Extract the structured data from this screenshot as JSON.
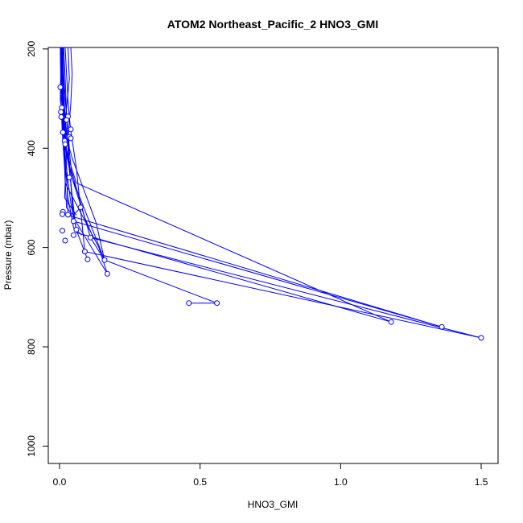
{
  "chart_data": {
    "type": "line",
    "title": "ATOM2 Northeast_Pacific_2 HNO3_GMI",
    "xlabel": "HNO3_GMI",
    "ylabel": "Pressure (mbar)",
    "xlim": [
      -0.04,
      1.56
    ],
    "ylim": [
      1035,
      197
    ],
    "y_reversed": true,
    "x_ticks": [
      0.0,
      0.5,
      1.0,
      1.5
    ],
    "x_tick_labels": [
      "0.0",
      "0.5",
      "1.0",
      "1.5"
    ],
    "y_ticks": [
      200,
      400,
      600,
      800,
      1000
    ],
    "y_tick_labels": [
      "200",
      "400",
      "600",
      "800",
      "1000"
    ],
    "grid": false,
    "legend": "none",
    "line_color": "#0000ff",
    "marker": "open-circle",
    "series": [
      {
        "x": [
          0.003,
          0.004,
          0.005,
          0.003,
          0.008,
          0.02,
          0.05,
          0.09,
          0.12
        ],
        "y": [
          197,
          230,
          265,
          300,
          335,
          400,
          470,
          540,
          580
        ]
      },
      {
        "x": [
          0.005,
          0.007,
          0.009,
          0.012,
          0.02,
          0.06,
          1.18
        ],
        "y": [
          197,
          240,
          290,
          320,
          400,
          470,
          750
        ]
      },
      {
        "x": [
          0.008,
          0.006,
          0.004,
          0.003,
          0.012,
          0.035,
          0.05,
          1.36
        ],
        "y": [
          197,
          230,
          260,
          280,
          370,
          430,
          547,
          760
        ]
      },
      {
        "x": [
          0.012,
          0.015,
          0.02,
          0.025,
          0.03,
          0.045,
          0.16,
          0.56,
          0.46
        ],
        "y": [
          197,
          250,
          300,
          335,
          380,
          460,
          625,
          712,
          712
        ]
      },
      {
        "x": [
          0.02,
          0.025,
          0.03,
          0.035,
          0.04,
          0.06,
          0.09,
          1.5
        ],
        "y": [
          197,
          250,
          300,
          338,
          365,
          440,
          608,
          782
        ]
      },
      {
        "x": [
          0.03,
          0.035,
          0.025,
          0.018,
          0.022,
          0.03,
          1.36
        ],
        "y": [
          197,
          260,
          320,
          345,
          385,
          535,
          760
        ]
      },
      {
        "x": [
          0.04,
          0.045,
          0.04,
          0.03,
          0.03,
          0.06,
          1.18
        ],
        "y": [
          197,
          250,
          310,
          380,
          420,
          570,
          750
        ]
      },
      {
        "x": [
          0.008,
          0.01,
          0.012,
          0.02,
          0.04,
          0.06,
          0.1
        ],
        "y": [
          197,
          260,
          320,
          420,
          510,
          565,
          624
        ]
      },
      {
        "x": [
          0.01,
          0.012,
          0.015,
          0.02,
          0.035,
          0.045,
          0.11,
          1.5
        ],
        "y": [
          197,
          260,
          320,
          400,
          440,
          450,
          580,
          782
        ]
      },
      {
        "x": [
          0.006,
          0.01,
          0.018,
          0.03,
          0.05,
          0.17
        ],
        "y": [
          197,
          260,
          330,
          392,
          540,
          653
        ]
      },
      {
        "x": [
          0.01,
          0.008,
          0.006,
          0.01,
          0.018,
          0.025,
          0.05,
          0.075
        ],
        "y": [
          197,
          260,
          320,
          370,
          440,
          520,
          535,
          519
        ]
      },
      {
        "x": [
          0.003,
          0.004,
          0.005,
          0.008,
          0.012,
          0.02,
          0.018,
          0.06
        ],
        "y": [
          197,
          250,
          290,
          300,
          320,
          470,
          500,
          535
        ]
      },
      {
        "x": [
          0.015,
          0.02,
          0.025,
          0.035,
          0.045,
          0.13,
          0.16,
          0.11
        ],
        "y": [
          197,
          260,
          330,
          400,
          420,
          550,
          625,
          580
        ]
      },
      {
        "x": [
          0.012,
          0.014,
          0.018,
          0.025,
          0.02,
          0.14,
          0.17
        ],
        "y": [
          197,
          260,
          320,
          390,
          470,
          600,
          653
        ]
      },
      {
        "x": [
          0.005,
          0.006,
          0.008,
          0.01,
          0.015,
          0.03,
          0.05,
          0.08
        ],
        "y": [
          197,
          240,
          280,
          300,
          400,
          500,
          560,
          575
        ]
      }
    ],
    "markers": [
      {
        "x": 0.003,
        "y": 277
      },
      {
        "x": 0.008,
        "y": 318
      },
      {
        "x": 0.005,
        "y": 327
      },
      {
        "x": 0.006,
        "y": 337
      },
      {
        "x": 0.03,
        "y": 336
      },
      {
        "x": 0.025,
        "y": 343
      },
      {
        "x": 0.04,
        "y": 362
      },
      {
        "x": 0.012,
        "y": 368
      },
      {
        "x": 0.035,
        "y": 377
      },
      {
        "x": 0.04,
        "y": 380
      },
      {
        "x": 0.018,
        "y": 385
      },
      {
        "x": 0.02,
        "y": 392
      },
      {
        "x": 0.035,
        "y": 459
      },
      {
        "x": 0.075,
        "y": 519
      },
      {
        "x": 0.012,
        "y": 528
      },
      {
        "x": 0.01,
        "y": 533
      },
      {
        "x": 0.03,
        "y": 534
      },
      {
        "x": 0.05,
        "y": 547
      },
      {
        "x": 0.06,
        "y": 564
      },
      {
        "x": 0.01,
        "y": 566
      },
      {
        "x": 0.05,
        "y": 575
      },
      {
        "x": 0.11,
        "y": 580
      },
      {
        "x": 0.02,
        "y": 586
      },
      {
        "x": 0.09,
        "y": 608
      },
      {
        "x": 0.1,
        "y": 624
      },
      {
        "x": 0.16,
        "y": 625
      },
      {
        "x": 0.17,
        "y": 653
      },
      {
        "x": 0.46,
        "y": 712
      },
      {
        "x": 0.56,
        "y": 712
      },
      {
        "x": 1.18,
        "y": 750
      },
      {
        "x": 1.36,
        "y": 760
      },
      {
        "x": 1.5,
        "y": 782
      }
    ]
  }
}
